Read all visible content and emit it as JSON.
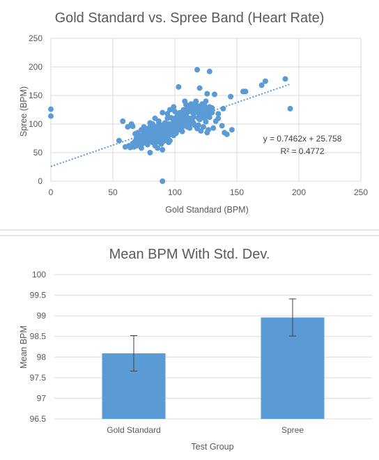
{
  "chart_data": [
    {
      "type": "scatter",
      "title": "Gold Standard vs. Spree Band (Heart Rate)",
      "xlabel": "Gold Standard (BPM)",
      "ylabel": "Spree (BPM)",
      "xlim": [
        0,
        250
      ],
      "ylim": [
        0,
        250
      ],
      "xticks": [
        "0",
        "50",
        "100",
        "150",
        "200",
        "250"
      ],
      "yticks": [
        "0",
        "50",
        "100",
        "150",
        "200",
        "250"
      ],
      "grid": "vertical and horizontal",
      "color": "#5b9bd5",
      "trendline": {
        "equation": "y = 0.7462x + 25.758",
        "r2": "R² = 0.4772",
        "slope": 0.7462,
        "intercept": 25.758,
        "x_range": [
          0,
          193
        ]
      },
      "points": [
        [
          0,
          126
        ],
        [
          0,
          114
        ],
        [
          55,
          71
        ],
        [
          58,
          105
        ],
        [
          60,
          60
        ],
        [
          62,
          95
        ],
        [
          63,
          62
        ],
        [
          64,
          59
        ],
        [
          65,
          100
        ],
        [
          66,
          96
        ],
        [
          67,
          60
        ],
        [
          68,
          83
        ],
        [
          69,
          62
        ],
        [
          70,
          85
        ],
        [
          70,
          65
        ],
        [
          71,
          70
        ],
        [
          72,
          75
        ],
        [
          72,
          62
        ],
        [
          73,
          80
        ],
        [
          73,
          90
        ],
        [
          74,
          72
        ],
        [
          75,
          85
        ],
        [
          75,
          95
        ],
        [
          76,
          78
        ],
        [
          76,
          68
        ],
        [
          77,
          82
        ],
        [
          77,
          92
        ],
        [
          78,
          75
        ],
        [
          78,
          88
        ],
        [
          79,
          70
        ],
        [
          79,
          80
        ],
        [
          80,
          78
        ],
        [
          80,
          85
        ],
        [
          80,
          95
        ],
        [
          81,
          72
        ],
        [
          81,
          88
        ],
        [
          82,
          76
        ],
        [
          82,
          90
        ],
        [
          82,
          100
        ],
        [
          83,
          74
        ],
        [
          83,
          84
        ],
        [
          84,
          78
        ],
        [
          84,
          92
        ],
        [
          84,
          110
        ],
        [
          85,
          80
        ],
        [
          85,
          68
        ],
        [
          86,
          76
        ],
        [
          86,
          88
        ],
        [
          86,
          96
        ],
        [
          87,
          82
        ],
        [
          87,
          72
        ],
        [
          87,
          105
        ],
        [
          88,
          79
        ],
        [
          88,
          90
        ],
        [
          89,
          84
        ],
        [
          89,
          74
        ],
        [
          89,
          98
        ],
        [
          90,
          80
        ],
        [
          90,
          88
        ],
        [
          90,
          93
        ],
        [
          90,
          120
        ],
        [
          91,
          76
        ],
        [
          91,
          86
        ],
        [
          92,
          82
        ],
        [
          92,
          90
        ],
        [
          92,
          102
        ],
        [
          93,
          78
        ],
        [
          93,
          95
        ],
        [
          94,
          84
        ],
        [
          94,
          88
        ],
        [
          94,
          110
        ],
        [
          95,
          80
        ],
        [
          95,
          92
        ],
        [
          95,
          100
        ],
        [
          96,
          86
        ],
        [
          96,
          96
        ],
        [
          96,
          125
        ],
        [
          97,
          90
        ],
        [
          97,
          82
        ],
        [
          98,
          94
        ],
        [
          98,
          100
        ],
        [
          98,
          88
        ],
        [
          99,
          92
        ],
        [
          99,
          105
        ],
        [
          99,
          130
        ],
        [
          100,
          96
        ],
        [
          100,
          88
        ],
        [
          100,
          110
        ],
        [
          101,
          100
        ],
        [
          101,
          92
        ],
        [
          102,
          105
        ],
        [
          102,
          115
        ],
        [
          103,
          98
        ],
        [
          103,
          90
        ],
        [
          104,
          108
        ],
        [
          104,
          95
        ],
        [
          104,
          120
        ],
        [
          105,
          100
        ],
        [
          105,
          112
        ],
        [
          106,
          95
        ],
        [
          106,
          118
        ],
        [
          107,
          104
        ],
        [
          107,
          125
        ],
        [
          108,
          110
        ],
        [
          108,
          100
        ],
        [
          108,
          140
        ],
        [
          109,
          115
        ],
        [
          110,
          105
        ],
        [
          110,
          130
        ],
        [
          110,
          120
        ],
        [
          111,
          125
        ],
        [
          112,
          110
        ],
        [
          112,
          100
        ],
        [
          113,
          122
        ],
        [
          113,
          135
        ],
        [
          114,
          128
        ],
        [
          114,
          105
        ],
        [
          115,
          118
        ],
        [
          115,
          112
        ],
        [
          116,
          130
        ],
        [
          116,
          98
        ],
        [
          117,
          125
        ],
        [
          117,
          140
        ],
        [
          118,
          120
        ],
        [
          118,
          132
        ],
        [
          119,
          110
        ],
        [
          119,
          128
        ],
        [
          120,
          125
        ],
        [
          120,
          115
        ],
        [
          121,
          130
        ],
        [
          121,
          88
        ],
        [
          122,
          120
        ],
        [
          122,
          135
        ],
        [
          123,
          118
        ],
        [
          123,
          95
        ],
        [
          124,
          128
        ],
        [
          124,
          110
        ],
        [
          125,
          122
        ],
        [
          125,
          140
        ],
        [
          126,
          118
        ],
        [
          126,
          85
        ],
        [
          127,
          125
        ],
        [
          128,
          130
        ],
        [
          128,
          112
        ],
        [
          129,
          120
        ],
        [
          130,
          128
        ],
        [
          130,
          120
        ],
        [
          132,
          152
        ],
        [
          133,
          105
        ],
        [
          135,
          118
        ],
        [
          138,
          97
        ],
        [
          140,
          85
        ],
        [
          142,
          82
        ],
        [
          145,
          148
        ],
        [
          146,
          90
        ],
        [
          126,
          153
        ],
        [
          155,
          157
        ],
        [
          157,
          157
        ],
        [
          170,
          168
        ],
        [
          173,
          175
        ],
        [
          189,
          179
        ],
        [
          193,
          127
        ],
        [
          118,
          195
        ],
        [
          128,
          192
        ],
        [
          103,
          165
        ],
        [
          120,
          163
        ],
        [
          90,
          0
        ],
        [
          80,
          50
        ],
        [
          98,
          92
        ],
        [
          92,
          86
        ],
        [
          88,
          82
        ],
        [
          100,
          104
        ],
        [
          105,
          97
        ],
        [
          85,
          88
        ],
        [
          95,
          85
        ],
        [
          102,
          92
        ],
        [
          97,
          100
        ],
        [
          103,
          112
        ],
        [
          107,
          118
        ],
        [
          111,
          108
        ],
        [
          115,
          102
        ],
        [
          120,
          108
        ],
        [
          125,
          104
        ],
        [
          118,
          92
        ],
        [
          110,
          95
        ],
        [
          89,
          65
        ],
        [
          91,
          70
        ],
        [
          93,
          74
        ],
        [
          96,
          71
        ],
        [
          99,
          80
        ],
        [
          101,
          84
        ],
        [
          84,
          62
        ],
        [
          78,
          64
        ],
        [
          74,
          66
        ],
        [
          76,
          90
        ],
        [
          80,
          102
        ],
        [
          83,
          96
        ],
        [
          87,
          100
        ],
        [
          94,
          118
        ],
        [
          97,
          111
        ],
        [
          100,
          122
        ],
        [
          109,
          134
        ],
        [
          113,
          128
        ],
        [
          116,
          136
        ],
        [
          121,
          115
        ],
        [
          124,
          132
        ],
        [
          106,
          87
        ],
        [
          112,
          93
        ],
        [
          119,
          98
        ],
        [
          127,
          90
        ],
        [
          131,
          93
        ],
        [
          135,
          110
        ],
        [
          139,
          127
        ],
        [
          86,
          58
        ],
        [
          90,
          55
        ],
        [
          82,
          68
        ],
        [
          77,
          73
        ],
        [
          73,
          58
        ],
        [
          68,
          70
        ],
        [
          66,
          66
        ],
        [
          71,
          79
        ],
        [
          69,
          76
        ],
        [
          92,
          76
        ],
        [
          95,
          68
        ],
        [
          88,
          68
        ]
      ]
    },
    {
      "type": "bar",
      "title": "Mean BPM With Std. Dev.",
      "xlabel": "Test Group",
      "ylabel": "Mean BPM",
      "ylim": [
        96.5,
        100
      ],
      "yticks": [
        "96.5",
        "97",
        "97.5",
        "98",
        "98.5",
        "99",
        "99.5",
        "100"
      ],
      "grid": "horizontal",
      "color": "#5b9bd5",
      "categories": [
        "Gold Standard",
        "Spree"
      ],
      "values": [
        98.09,
        98.96
      ],
      "error": [
        0.43,
        0.45
      ]
    }
  ]
}
